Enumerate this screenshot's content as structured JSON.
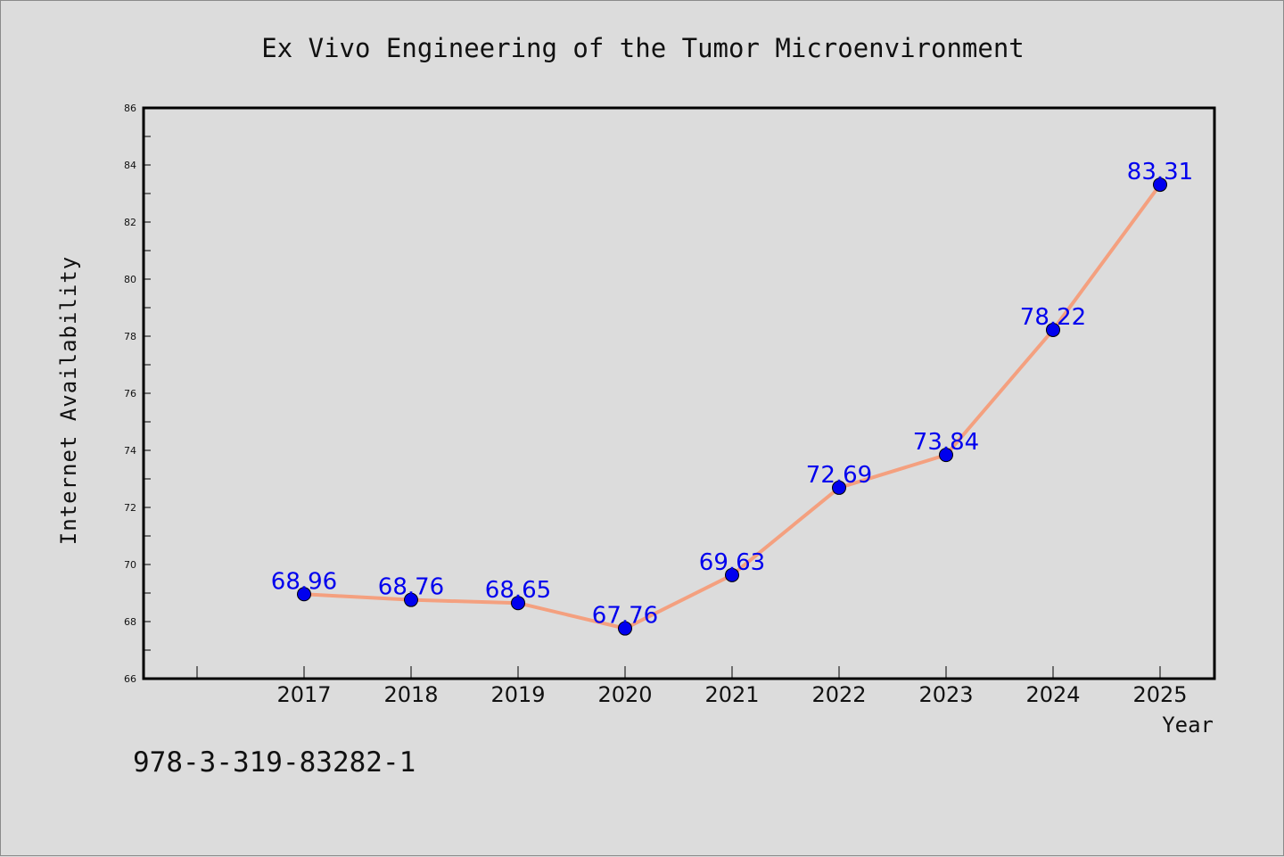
{
  "chart_data": {
    "type": "line",
    "title": "Ex Vivo Engineering of the Tumor Microenvironment",
    "xlabel": "Year",
    "ylabel": "Internet Availability",
    "x": [
      "2017",
      "2018",
      "2019",
      "2020",
      "2021",
      "2022",
      "2023",
      "2024",
      "2025"
    ],
    "series": [
      {
        "values": [
          68.96,
          68.76,
          68.65,
          67.76,
          69.63,
          72.69,
          73.84,
          78.22,
          83.31
        ],
        "labels": [
          "68.96",
          "68.76",
          "68.65",
          "67.76",
          "69.63",
          "72.69",
          "73.84",
          "78.22",
          "83.31"
        ]
      }
    ],
    "ylim": [
      66,
      86
    ],
    "yticks": [
      "66",
      "68",
      "70",
      "72",
      "74",
      "76",
      "78",
      "80",
      "82",
      "84",
      "86"
    ],
    "grid": false,
    "line_color": "#f4a07f",
    "marker_color": "#0000ee",
    "label_color": "#0000ee"
  },
  "footnote": "978-3-319-83282-1"
}
